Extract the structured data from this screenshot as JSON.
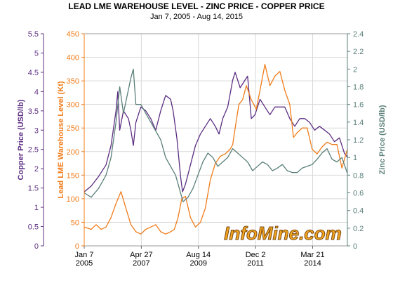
{
  "chart_data": {
    "type": "line",
    "title": "LEAD LME WAREHOUSE LEVEL - ZINC PRICE - COPPER PRICE",
    "subtitle": "Jan 7, 2005 - Aug 14, 2015",
    "watermark": "InfoMine.com",
    "x_ticks": [
      {
        "t": 2005.02,
        "label": [
          "Jan 7",
          "2005"
        ]
      },
      {
        "t": 2007.32,
        "label": [
          "Apr 27",
          "2007"
        ]
      },
      {
        "t": 2009.62,
        "label": [
          "Aug 14",
          "2009"
        ]
      },
      {
        "t": 2011.92,
        "label": [
          "Dec 2",
          "2011"
        ]
      },
      {
        "t": 2014.22,
        "label": [
          "Mar 21",
          "2014"
        ]
      }
    ],
    "xlim": [
      2005.02,
      2015.62
    ],
    "axes": {
      "copper": {
        "label": "Copper Price (USD/lb)",
        "ylim": [
          0,
          5.5
        ],
        "ticks": [
          0,
          0.5,
          1,
          1.5,
          2,
          2.5,
          3,
          3.5,
          4,
          4.5,
          5,
          5.5
        ],
        "color": "#5b2d82"
      },
      "lead": {
        "label": "Lead LME Warehouse Level (Kt)",
        "ylim": [
          0,
          450
        ],
        "ticks": [
          0,
          50,
          100,
          150,
          200,
          250,
          300,
          350,
          400,
          450
        ],
        "color": "#f07c1a"
      },
      "zinc": {
        "label": "Zinc Price (USD/lb)",
        "ylim": [
          0,
          2.4
        ],
        "ticks": [
          0,
          0.2,
          0.4,
          0.6,
          0.8,
          1,
          1.2,
          1.4,
          1.6,
          1.8,
          2,
          2.2,
          2.4
        ],
        "tick_labels": [
          "0",
          "0.2",
          "0.4",
          "0.6",
          "0.8",
          "1",
          "1.2",
          "1.4",
          "1.6",
          "1.8",
          "2",
          "2.2",
          "2.4"
        ],
        "color": "#5a7f79"
      }
    },
    "series": [
      {
        "key": "copper",
        "name": "Copper Price (USD/lb)",
        "axis": "copper",
        "color": "#5b2d82",
        "x": [
          2005.02,
          2005.3,
          2005.6,
          2005.9,
          2006.1,
          2006.3,
          2006.37,
          2006.45,
          2006.6,
          2006.8,
          2006.9,
          2007.0,
          2007.1,
          2007.3,
          2007.5,
          2007.7,
          2007.9,
          2008.1,
          2008.3,
          2008.5,
          2008.6,
          2008.75,
          2008.9,
          2008.98,
          2009.1,
          2009.3,
          2009.5,
          2009.7,
          2009.9,
          2010.1,
          2010.3,
          2010.45,
          2010.6,
          2010.8,
          2011.0,
          2011.1,
          2011.3,
          2011.5,
          2011.6,
          2011.75,
          2011.9,
          2012.1,
          2012.3,
          2012.5,
          2012.7,
          2012.9,
          2013.1,
          2013.3,
          2013.5,
          2013.7,
          2013.9,
          2014.1,
          2014.3,
          2014.5,
          2014.7,
          2014.9,
          2015.1,
          2015.3,
          2015.5,
          2015.62
        ],
        "y": [
          1.4,
          1.55,
          1.8,
          2.1,
          2.6,
          3.5,
          4.0,
          3.0,
          3.5,
          3.3,
          3.0,
          2.6,
          3.2,
          3.6,
          3.5,
          3.3,
          3.0,
          3.5,
          3.9,
          3.8,
          3.5,
          2.8,
          1.8,
          1.4,
          1.6,
          2.1,
          2.6,
          2.9,
          3.1,
          3.3,
          3.1,
          2.9,
          3.3,
          3.6,
          4.3,
          4.5,
          4.1,
          4.3,
          4.4,
          3.3,
          3.4,
          3.8,
          3.6,
          3.4,
          3.6,
          3.6,
          3.6,
          3.3,
          3.1,
          3.3,
          3.3,
          3.2,
          3.0,
          3.1,
          3.0,
          2.9,
          2.7,
          2.8,
          2.4,
          2.3
        ]
      },
      {
        "key": "lead",
        "name": "Lead LME Warehouse Level (Kt)",
        "axis": "lead",
        "color": "#f07c1a",
        "x": [
          2005.02,
          2005.3,
          2005.5,
          2005.7,
          2005.9,
          2006.1,
          2006.3,
          2006.5,
          2006.7,
          2006.9,
          2007.1,
          2007.3,
          2007.5,
          2007.7,
          2007.9,
          2008.1,
          2008.3,
          2008.5,
          2008.65,
          2008.8,
          2008.95,
          2009.1,
          2009.3,
          2009.5,
          2009.7,
          2009.9,
          2010.1,
          2010.3,
          2010.5,
          2010.7,
          2010.9,
          2011.0,
          2011.1,
          2011.25,
          2011.4,
          2011.55,
          2011.75,
          2011.95,
          2012.1,
          2012.3,
          2012.5,
          2012.7,
          2012.9,
          2013.1,
          2013.3,
          2013.45,
          2013.6,
          2013.8,
          2014.0,
          2014.2,
          2014.4,
          2014.6,
          2014.8,
          2015.0,
          2015.2,
          2015.4,
          2015.62
        ],
        "y": [
          40,
          35,
          45,
          35,
          40,
          60,
          90,
          115,
          80,
          45,
          30,
          25,
          35,
          40,
          45,
          30,
          25,
          30,
          35,
          60,
          100,
          105,
          60,
          40,
          50,
          80,
          140,
          175,
          190,
          195,
          205,
          215,
          250,
          300,
          310,
          340,
          310,
          290,
          330,
          385,
          340,
          360,
          370,
          330,
          300,
          230,
          240,
          250,
          250,
          205,
          195,
          210,
          220,
          215,
          215,
          165,
          205
        ]
      },
      {
        "key": "zinc",
        "name": "Zinc Price (USD/lb)",
        "axis": "zinc",
        "color": "#5a7f79",
        "x": [
          2005.02,
          2005.3,
          2005.6,
          2005.9,
          2006.1,
          2006.3,
          2006.45,
          2006.6,
          2006.75,
          2006.9,
          2007.0,
          2007.1,
          2007.3,
          2007.5,
          2007.7,
          2007.9,
          2008.1,
          2008.3,
          2008.5,
          2008.7,
          2008.85,
          2009.0,
          2009.2,
          2009.4,
          2009.6,
          2009.8,
          2010.0,
          2010.2,
          2010.4,
          2010.6,
          2010.8,
          2011.0,
          2011.2,
          2011.4,
          2011.6,
          2011.8,
          2012.0,
          2012.2,
          2012.4,
          2012.6,
          2012.8,
          2013.0,
          2013.2,
          2013.4,
          2013.6,
          2013.8,
          2014.0,
          2014.2,
          2014.4,
          2014.6,
          2014.8,
          2015.0,
          2015.2,
          2015.4,
          2015.62
        ],
        "y": [
          0.6,
          0.55,
          0.65,
          0.8,
          1.0,
          1.4,
          1.8,
          1.5,
          1.7,
          1.9,
          2.0,
          1.6,
          1.6,
          1.5,
          1.4,
          1.3,
          1.2,
          1.0,
          0.9,
          0.8,
          0.65,
          0.5,
          0.55,
          0.65,
          0.8,
          0.95,
          1.05,
          1.0,
          0.9,
          0.95,
          1.0,
          1.1,
          1.05,
          1.0,
          0.95,
          0.85,
          0.9,
          0.95,
          0.92,
          0.85,
          0.88,
          0.92,
          0.85,
          0.83,
          0.83,
          0.88,
          0.9,
          0.92,
          0.98,
          1.05,
          1.1,
          0.98,
          0.95,
          1.0,
          0.82
        ]
      }
    ]
  }
}
